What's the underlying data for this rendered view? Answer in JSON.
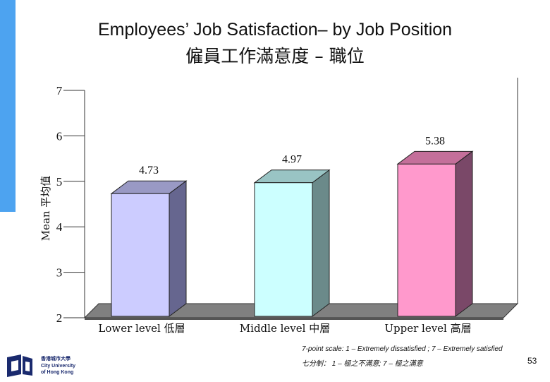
{
  "title_en": "Employees’ Job Satisfaction– by Job Position",
  "title_zh": "僱員工作滿意度 – 職位",
  "chart_data": {
    "type": "bar",
    "categories": [
      "Lower level 低層",
      "Middle level 中層",
      "Upper level 高層"
    ],
    "values": [
      4.73,
      4.97,
      5.38
    ],
    "value_labels": [
      "4.73",
      "4.97",
      "5.38"
    ],
    "ylabel": "Mean 平均值",
    "xlabel": "",
    "ylim": [
      2,
      7
    ],
    "yticks": [
      "2",
      "3",
      "4",
      "5",
      "6",
      "7"
    ],
    "bar_colors": [
      {
        "front": "#ccccff",
        "side": "#66668f",
        "top": "#9999c4"
      },
      {
        "front": "#ccffff",
        "side": "#6b8a8a",
        "top": "#99c4c4"
      },
      {
        "front": "#ff99cc",
        "side": "#7a4868",
        "top": "#c46f9a"
      }
    ],
    "floor_color": "#808080",
    "grid": false,
    "legend": "none",
    "three_d": true
  },
  "notes": {
    "scale_en": "7-point scale: 1 – Extremely dissatisfied ; 7 – Extremely satisfied",
    "scale_zh": "七分制： 1 – 極之不滿意; 7 – 極之滿意"
  },
  "page_number": "53",
  "logo": {
    "line1": "香港城市大學",
    "line2": "City University",
    "line3": "of Hong Kong",
    "icon": "cityu-logo-icon",
    "color": "#1a2a6e"
  },
  "accent_color": "#4da3f0"
}
